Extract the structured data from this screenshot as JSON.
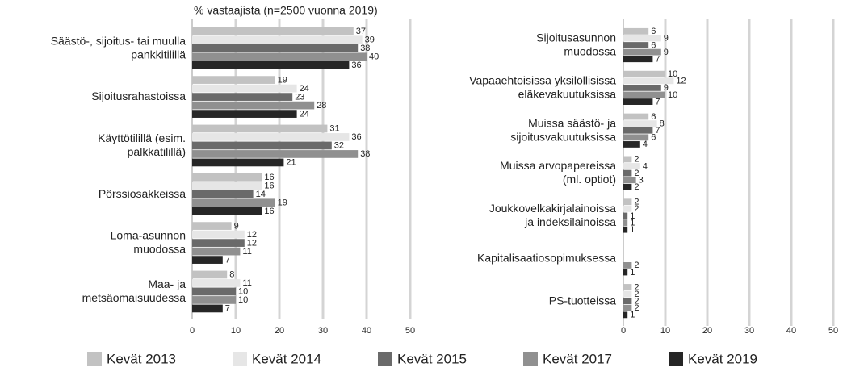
{
  "chart_data": [
    {
      "type": "barh",
      "title": "% vastaajista (n=2500 vuonna 2019)",
      "categories": [
        [
          "Säästö-, sijoitus- tai muulla",
          "pankkitilillä"
        ],
        [
          "Sijoitusrahastoissa"
        ],
        [
          "Käyttötilillä (esim.",
          "palkkatilillä)"
        ],
        [
          "Pörssiosakkeissa"
        ],
        [
          "Loma-asunnon",
          "muodossa"
        ],
        [
          "Maa- ja",
          "metsäomaisuudessa"
        ]
      ],
      "series": [
        {
          "name": "Kevät 2013",
          "color": "#c2c2c2",
          "values": [
            37,
            19,
            31,
            16,
            9,
            8
          ]
        },
        {
          "name": "Kevät 2014",
          "color": "#e6e6e6",
          "values": [
            39,
            24,
            36,
            16,
            12,
            11
          ]
        },
        {
          "name": "Kevät 2015",
          "color": "#6a6a6a",
          "values": [
            38,
            23,
            32,
            14,
            12,
            10
          ]
        },
        {
          "name": "Kevät 2017",
          "color": "#909090",
          "values": [
            40,
            28,
            38,
            19,
            11,
            10
          ]
        },
        {
          "name": "Kevät 2019",
          "color": "#262626",
          "values": [
            36,
            24,
            21,
            16,
            7,
            7
          ]
        }
      ],
      "xlim": [
        0,
        50
      ],
      "xticks": [
        0,
        10,
        20,
        30,
        40,
        50
      ],
      "grid": true
    },
    {
      "type": "barh",
      "categories": [
        [
          "Sijoitusasunnon",
          "muodossa"
        ],
        [
          "Vapaaehtoisissa yksilöllisissä",
          "eläkevakuutuksissa"
        ],
        [
          "Muissa säästö- ja",
          "sijoitusvakuutuksissa"
        ],
        [
          "Muissa arvopapereissa",
          "(ml. optiot)"
        ],
        [
          "Joukkovelkakirjalainoissa",
          "ja indeksilainoissa"
        ],
        [
          "Kapitalisaatiosopimuksessa"
        ],
        [
          "PS-tuotteissa"
        ]
      ],
      "series": [
        {
          "color": "#c2c2c2",
          "values": [
            6,
            10,
            6,
            2,
            2,
            null,
            2
          ]
        },
        {
          "color": "#e6e6e6",
          "values": [
            9,
            12,
            8,
            4,
            2,
            null,
            2
          ]
        },
        {
          "color": "#6a6a6a",
          "values": [
            6,
            9,
            7,
            2,
            1,
            null,
            2
          ]
        },
        {
          "color": "#909090",
          "values": [
            9,
            10,
            6,
            3,
            1,
            2,
            2
          ]
        },
        {
          "color": "#262626",
          "values": [
            7,
            7,
            4,
            2,
            1,
            1,
            1
          ]
        }
      ],
      "xlim": [
        0,
        50
      ],
      "xticks": [
        0,
        10,
        20,
        30,
        40,
        50
      ],
      "grid": true
    }
  ]
}
